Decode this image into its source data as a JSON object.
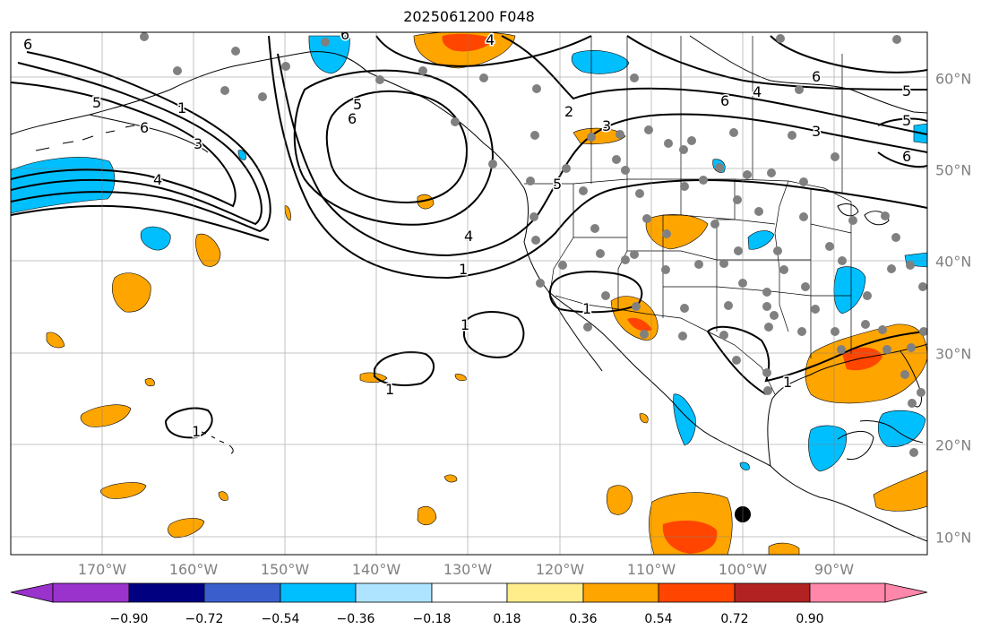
{
  "title": "2025061200 F048",
  "lon_labels": [
    "170°W",
    "160°W",
    "150°W",
    "140°W",
    "130°W",
    "120°W",
    "110°W",
    "100°W",
    "90°W"
  ],
  "lat_labels": [
    "60°N",
    "50°N",
    "40°N",
    "30°N",
    "20°N",
    "10°N"
  ],
  "colorbar": {
    "ticks": [
      "−0.90",
      "−0.72",
      "−0.54",
      "−0.36",
      "−0.18",
      "0.18",
      "0.36",
      "0.54",
      "0.72",
      "0.90"
    ],
    "colors": [
      "#9933cc",
      "#000080",
      "#3a5fcd",
      "#00bfff",
      "#aee4ff",
      "#ffffff",
      "#ffec8b",
      "#ffa500",
      "#ff4500",
      "#b22222",
      "#ff88aa"
    ]
  },
  "contour_labels": [
    "6",
    "5",
    "6",
    "4",
    "1",
    "3",
    "6",
    "5",
    "6",
    "4",
    "1",
    "1",
    "1",
    "1",
    "1",
    "2",
    "3",
    "5",
    "4",
    "6",
    "5",
    "5",
    "3",
    "6",
    "1",
    "4",
    "6"
  ],
  "colors": {
    "positive": "#ffa500",
    "strong_positive": "#ff4500",
    "negative": "#00bfff",
    "obs": "#808080"
  }
}
